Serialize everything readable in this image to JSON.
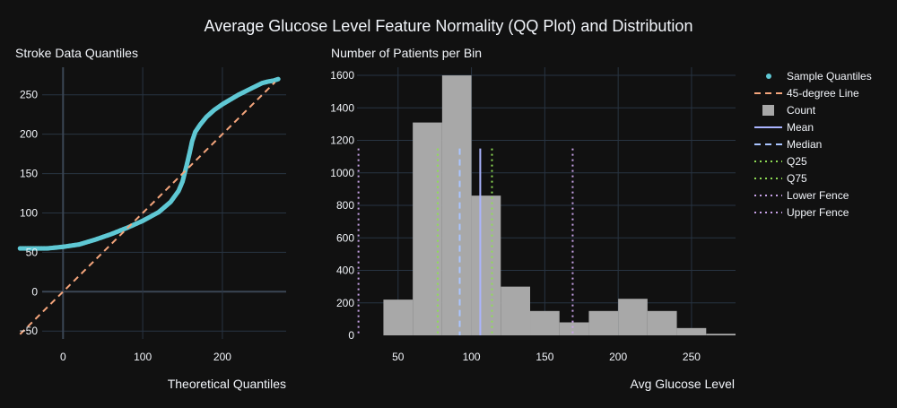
{
  "title": "Average Glucose Level Feature Normality (QQ Plot) and Distribution",
  "chart_data": [
    {
      "type": "scatter",
      "subtitle": "Stroke Data Quantiles",
      "xlabel": "Theoretical Quantiles",
      "ylabel": "",
      "xlim": [
        -60,
        280
      ],
      "ylim": [
        -60,
        285
      ],
      "xticks": [
        0,
        100,
        200
      ],
      "yticks": [
        -50,
        0,
        50,
        100,
        150,
        200,
        250
      ],
      "grid": true,
      "series": [
        {
          "name": "Sample Quantiles",
          "mode": "markers",
          "x": [
            -54,
            -40,
            -20,
            0,
            20,
            40,
            60,
            80,
            100,
            120,
            135,
            145,
            150,
            153,
            156,
            159,
            162,
            166,
            172,
            180,
            190,
            200,
            210,
            220,
            230,
            240,
            250,
            258,
            264,
            270
          ],
          "y": [
            55,
            55,
            55,
            57,
            60,
            66,
            73,
            81,
            90,
            101,
            114,
            128,
            140,
            152,
            164,
            177,
            191,
            203,
            212,
            222,
            231,
            238,
            244,
            250,
            255,
            260,
            265,
            267,
            268,
            270
          ]
        },
        {
          "name": "45-degree Line",
          "mode": "lines",
          "x": [
            -54,
            266
          ],
          "y": [
            -54,
            266
          ]
        }
      ]
    },
    {
      "type": "bar",
      "subtitle": "Number of Patients per Bin",
      "xlabel": "Avg Glucose Level",
      "ylabel": "",
      "xlim": [
        22,
        280
      ],
      "ylim": [
        0,
        1650
      ],
      "xticks": [
        50,
        100,
        150,
        200,
        250
      ],
      "yticks": [
        0,
        200,
        400,
        600,
        800,
        1000,
        1200,
        1400,
        1600
      ],
      "grid": true,
      "bin_width": 20,
      "series": [
        {
          "name": "Count",
          "bin_starts": [
            40,
            60,
            80,
            100,
            120,
            140,
            160,
            180,
            200,
            220,
            240,
            260
          ],
          "values": [
            220,
            1310,
            1600,
            860,
            300,
            150,
            80,
            150,
            225,
            150,
            45,
            10
          ]
        }
      ],
      "vlines": [
        {
          "name": "Mean",
          "x": 106,
          "y_top": 1150,
          "dash": "solid",
          "color": "#aab4ff"
        },
        {
          "name": "Median",
          "x": 92,
          "y_top": 1150,
          "dash": "dash",
          "color": "#a9c4ff"
        },
        {
          "name": "Q25",
          "x": 77,
          "y_top": 1150,
          "dash": "dot",
          "color": "#8fdd55"
        },
        {
          "name": "Q75",
          "x": 114,
          "y_top": 1150,
          "dash": "dot",
          "color": "#8fdd55"
        },
        {
          "name": "Lower Fence",
          "x": 23,
          "y_top": 1150,
          "dash": "dot",
          "color": "#c8a2e8"
        },
        {
          "name": "Upper Fence",
          "x": 169,
          "y_top": 1150,
          "dash": "dot",
          "color": "#c8a2e8"
        }
      ]
    }
  ],
  "legend": {
    "placement": "right",
    "items": [
      {
        "label": "Sample Quantiles",
        "symbol": "marker",
        "color": "#5fc8d4"
      },
      {
        "label": "45-degree Line",
        "symbol": "dash",
        "color": "#f4a57c"
      },
      {
        "label": "Count",
        "symbol": "box",
        "color": "#a8a8a8"
      },
      {
        "label": "Mean",
        "symbol": "solid",
        "color": "#aab4ff"
      },
      {
        "label": "Median",
        "symbol": "dash",
        "color": "#a9c4ff"
      },
      {
        "label": "Q25",
        "symbol": "dot",
        "color": "#8fdd55"
      },
      {
        "label": "Q75",
        "symbol": "dot",
        "color": "#8fdd55"
      },
      {
        "label": "Lower Fence",
        "symbol": "dot",
        "color": "#c8a2e8"
      },
      {
        "label": "Upper Fence",
        "symbol": "dot",
        "color": "#c8a2e8"
      }
    ]
  },
  "colors": {
    "background": "#111111",
    "grid": "#283442",
    "zeroline": "#3b4654",
    "scatter": "#5fc8d4",
    "line45": "#f4a57c",
    "bars": "#a8a8a8"
  }
}
